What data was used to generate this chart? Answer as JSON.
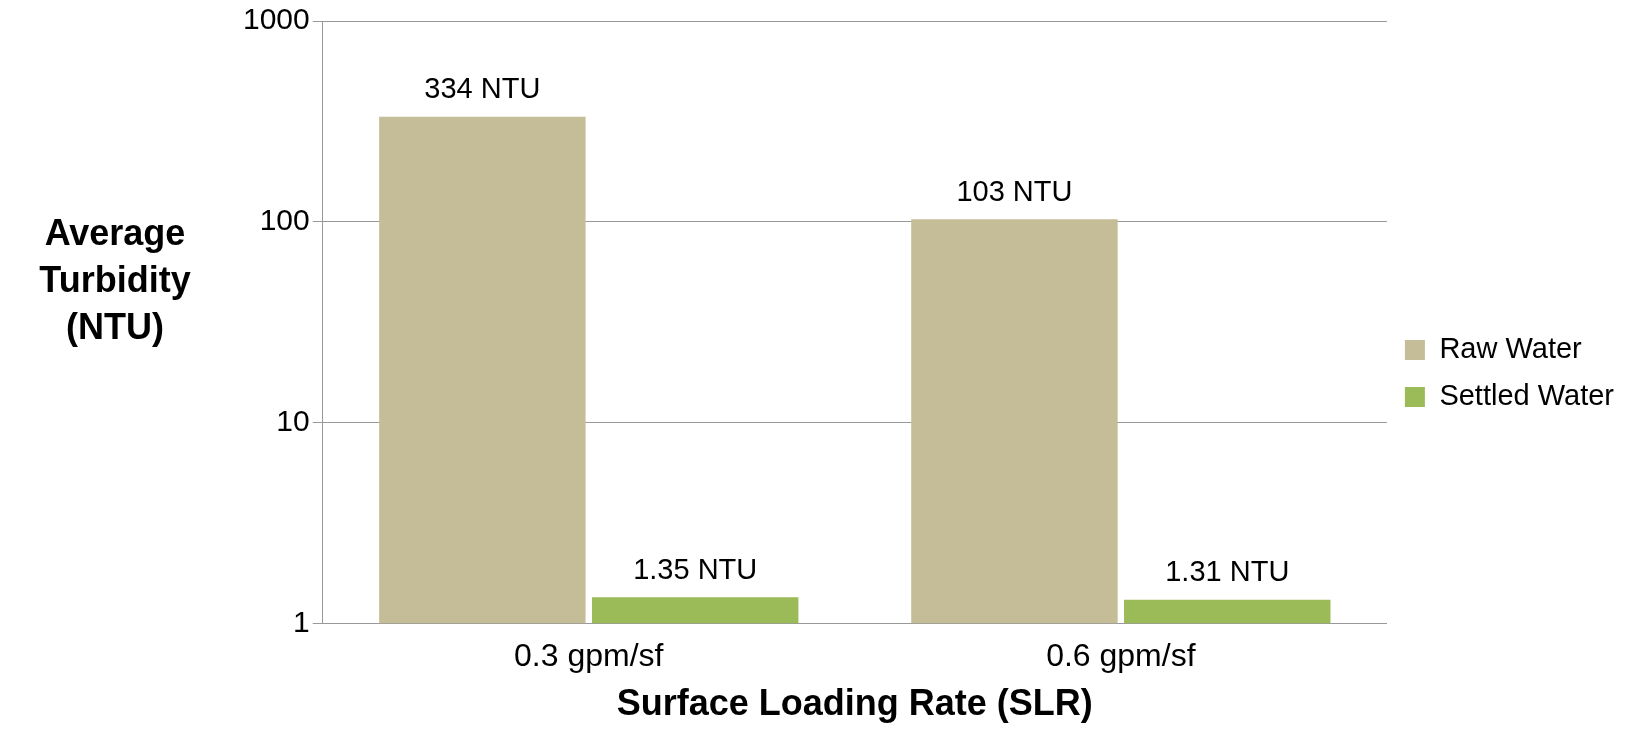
{
  "chart_data": {
    "type": "bar",
    "xlabel": "Surface Loading Rate (SLR)",
    "ylabel": "Average Turbidity (NTU)",
    "categories": [
      "0.3 gpm/sf",
      "0.6 gpm/sf"
    ],
    "series": [
      {
        "name": "Raw Water",
        "color": "#c4bd97",
        "values": [
          334,
          103
        ],
        "value_labels": [
          "334 NTU",
          "103 NTU"
        ]
      },
      {
        "name": "Settled Water",
        "color": "#9bbb59",
        "values": [
          1.35,
          1.31
        ],
        "value_labels": [
          "1.35 NTU",
          "1.31 NTU"
        ]
      }
    ],
    "log": true,
    "ylim": [
      1,
      1000
    ],
    "yticks": [
      1,
      10,
      100,
      1000
    ],
    "grid": "y",
    "legend": "right"
  }
}
